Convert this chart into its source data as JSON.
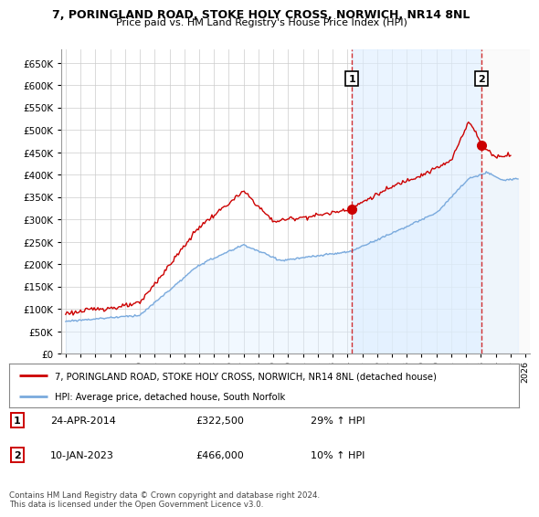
{
  "title": "7, PORINGLAND ROAD, STOKE HOLY CROSS, NORWICH, NR14 8NL",
  "subtitle": "Price paid vs. HM Land Registry's House Price Index (HPI)",
  "ylabel_ticks": [
    0,
    50000,
    100000,
    150000,
    200000,
    250000,
    300000,
    350000,
    400000,
    450000,
    500000,
    550000,
    600000,
    650000
  ],
  "ylim": [
    0,
    680000
  ],
  "xlim_start": 1994.7,
  "xlim_end": 2026.3,
  "red_line_color": "#cc0000",
  "blue_line_color": "#7aaadd",
  "vline1_x": 2014.31,
  "vline2_x": 2023.04,
  "marker1_x": 2014.31,
  "marker1_y": 322500,
  "marker2_x": 2023.04,
  "marker2_y": 466000,
  "legend_line1": "7, PORINGLAND ROAD, STOKE HOLY CROSS, NORWICH, NR14 8NL (detached house)",
  "legend_line2": "HPI: Average price, detached house, South Norfolk",
  "annotation1_num": "1",
  "annotation1_date": "24-APR-2014",
  "annotation1_price": "£322,500",
  "annotation1_hpi": "29% ↑ HPI",
  "annotation2_num": "2",
  "annotation2_date": "10-JAN-2023",
  "annotation2_price": "£466,000",
  "annotation2_hpi": "10% ↑ HPI",
  "footnote": "Contains HM Land Registry data © Crown copyright and database right 2024.\nThis data is licensed under the Open Government Licence v3.0.",
  "background_color": "#ffffff",
  "grid_color": "#cccccc",
  "shade_color": "#ddeeff",
  "hatch_color": "#cccccc"
}
